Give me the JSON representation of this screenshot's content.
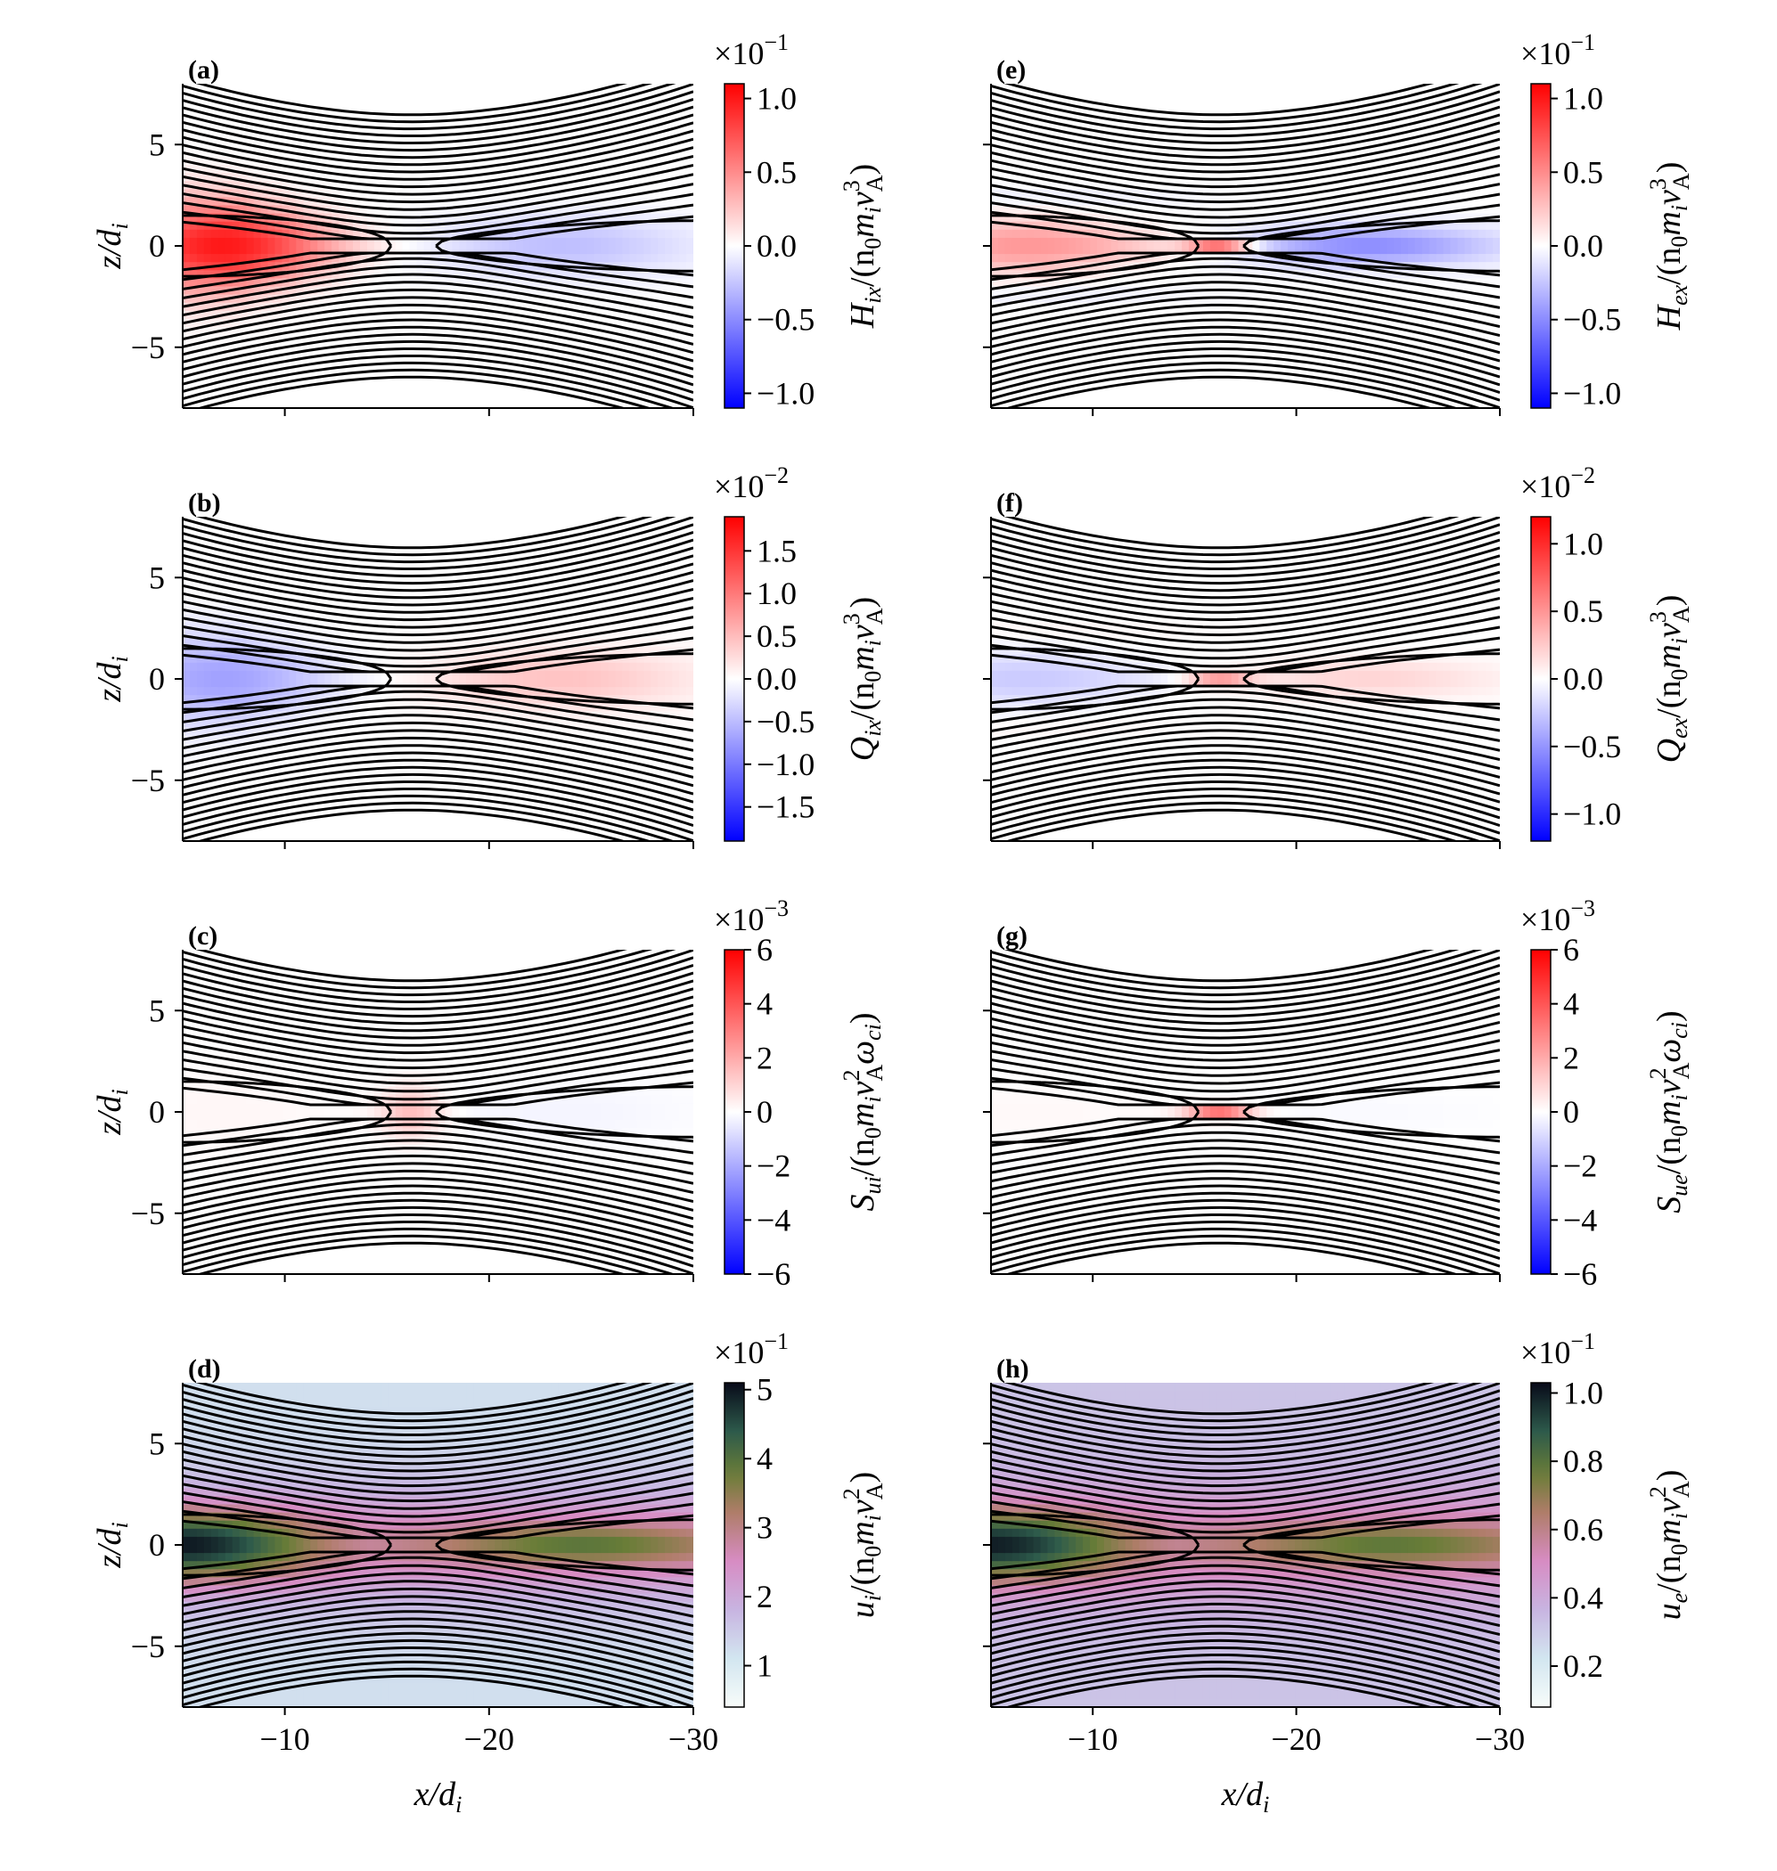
{
  "figure": {
    "shared_xlabel": "x/d",
    "shared_xlabel_sub": "i",
    "shared_ylabel": "z/d",
    "shared_ylabel_sub": "i",
    "x_ticks": [
      -10,
      -20,
      -30
    ],
    "x_tick_labels": [
      "−10",
      "−20",
      "−30"
    ],
    "y_ticks": [
      5,
      0,
      -5
    ],
    "y_tick_labels": [
      "5",
      "0",
      "−5"
    ],
    "xlim": [
      -5,
      -30
    ],
    "ylim": [
      -8,
      8
    ],
    "field_lines": {
      "count": 38,
      "color": "#000000"
    },
    "colors": {
      "red": "#ff0000",
      "blue": "#0000ff",
      "white": "#ffffff"
    }
  },
  "chart_data": [
    {
      "type": "heatmap",
      "panel": "(a)",
      "column": 0,
      "row": 0,
      "quantity": "ion enthalpy flux x",
      "label_sym": "H",
      "label_sub": "ix",
      "label_rest": "/(n",
      "label_unit": "m",
      "label_unit_sub": "i",
      "label_va": "v",
      "label_va_exp": "3",
      "label_va_sub": "A",
      "label_close": ")",
      "multiplier": "×10",
      "multiplier_exp": "−1",
      "colormap": "bwr",
      "vmin": -1.1,
      "vmax": 1.1,
      "cbar_ticks": [
        1.0,
        0.5,
        0.0,
        -0.5,
        -1.0
      ],
      "cbar_tick_labels": [
        "1.0",
        "0.5",
        "0.0",
        "−0.5",
        "−1.0"
      ],
      "features": {
        "left_blob": 1.0,
        "right_blob": -0.28,
        "xline": 0.0,
        "spread": "broad"
      }
    },
    {
      "type": "heatmap",
      "panel": "(b)",
      "column": 0,
      "row": 1,
      "quantity": "ion heat flux x",
      "label_sym": "Q",
      "label_sub": "ix",
      "label_rest": "/(n",
      "label_unit": "m",
      "label_unit_sub": "i",
      "label_va": "v",
      "label_va_exp": "3",
      "label_va_sub": "A",
      "label_close": ")",
      "multiplier": "×10",
      "multiplier_exp": "−2",
      "colormap": "bwr",
      "vmin": -1.9,
      "vmax": 1.9,
      "cbar_ticks": [
        1.5,
        1.0,
        0.5,
        0.0,
        -0.5,
        -1.0,
        -1.5
      ],
      "cbar_tick_labels": [
        "1.5",
        "1.0",
        "0.5",
        "0.0",
        "−0.5",
        "−1.0",
        "−1.5"
      ],
      "features": {
        "left_blob": -0.7,
        "right_blob": 0.45,
        "xline": 0.0,
        "spread": "broad"
      }
    },
    {
      "type": "heatmap",
      "panel": "(c)",
      "column": 0,
      "row": 2,
      "quantity": "ion energy source",
      "label_sym": "S",
      "label_sub": "ui",
      "label_rest": "/(n",
      "label_unit": "m",
      "label_unit_sub": "i",
      "label_va": "v",
      "label_va_exp": "2",
      "label_va_sub": "A",
      "label_close": "ω",
      "label_close_sub": "ci",
      "label_tail": ")",
      "multiplier": "×10",
      "multiplier_exp": "−3",
      "colormap": "bwr",
      "vmin": -6,
      "vmax": 6,
      "cbar_ticks": [
        6,
        4,
        2,
        0,
        -2,
        -4,
        -6
      ],
      "cbar_tick_labels": [
        "6",
        "4",
        "2",
        "0",
        "−2",
        "−4",
        "−6"
      ],
      "features": {
        "left_blob": 0.2,
        "right_blob": -0.25,
        "xline": 1.6,
        "spread": "broad"
      }
    },
    {
      "type": "heatmap",
      "panel": "(d)",
      "column": 0,
      "row": 3,
      "quantity": "ion internal energy",
      "label_sym": "u",
      "label_sub": "i",
      "label_rest": "/(n",
      "label_unit": "m",
      "label_unit_sub": "i",
      "label_va": "v",
      "label_va_exp": "2",
      "label_va_sub": "A",
      "label_close": ")",
      "multiplier": "×10",
      "multiplier_exp": "−1",
      "colormap": "cubehelix_r",
      "vmin": 0.4,
      "vmax": 5.1,
      "cbar_ticks": [
        5,
        4,
        3,
        2,
        1
      ],
      "cbar_tick_labels": [
        "5",
        "4",
        "3",
        "2",
        "1"
      ],
      "features": {
        "core_left": 5.0,
        "core_right": 3.6,
        "lobe_edge": 3.0,
        "background": 1.2,
        "sheet": 2.4
      }
    },
    {
      "type": "heatmap",
      "panel": "(e)",
      "column": 1,
      "row": 0,
      "quantity": "electron enthalpy flux x",
      "label_sym": "H",
      "label_sub": "ex",
      "label_rest": "/(n",
      "label_unit": "m",
      "label_unit_sub": "i",
      "label_va": "v",
      "label_va_exp": "3",
      "label_va_sub": "A",
      "label_close": ")",
      "multiplier": "×10",
      "multiplier_exp": "−1",
      "colormap": "bwr",
      "vmin": -1.1,
      "vmax": 1.1,
      "cbar_ticks": [
        1.0,
        0.5,
        0.0,
        -0.5,
        -1.0
      ],
      "cbar_tick_labels": [
        "1.0",
        "0.5",
        "0.0",
        "−0.5",
        "−1.0"
      ],
      "features": {
        "left_blob": 0.45,
        "right_blob": -0.5,
        "xline": 0.9,
        "spread": "narrow"
      }
    },
    {
      "type": "heatmap",
      "panel": "(f)",
      "column": 1,
      "row": 1,
      "quantity": "electron heat flux x",
      "label_sym": "Q",
      "label_sub": "ex",
      "label_rest": "/(n",
      "label_unit": "m",
      "label_unit_sub": "i",
      "label_va": "v",
      "label_va_exp": "3",
      "label_va_sub": "A",
      "label_close": ")",
      "multiplier": "×10",
      "multiplier_exp": "−2",
      "colormap": "bwr",
      "vmin": -1.2,
      "vmax": 1.2,
      "cbar_ticks": [
        1.0,
        0.5,
        0.0,
        -0.5,
        -1.0
      ],
      "cbar_tick_labels": [
        "1.0",
        "0.5",
        "0.0",
        "−0.5",
        "−1.0"
      ],
      "features": {
        "left_blob": -0.25,
        "right_blob": 0.2,
        "xline": 0.6,
        "spread": "narrow"
      }
    },
    {
      "type": "heatmap",
      "panel": "(g)",
      "column": 1,
      "row": 2,
      "quantity": "electron energy source",
      "label_sym": "S",
      "label_sub": "ue",
      "label_rest": "/(n",
      "label_unit": "m",
      "label_unit_sub": "i",
      "label_va": "v",
      "label_va_exp": "2",
      "label_va_sub": "A",
      "label_close": "ω",
      "label_close_sub": "ci",
      "label_tail": ")",
      "multiplier": "×10",
      "multiplier_exp": "−3",
      "colormap": "bwr",
      "vmin": -6,
      "vmax": 6,
      "cbar_ticks": [
        6,
        4,
        2,
        0,
        -2,
        -4,
        -6
      ],
      "cbar_tick_labels": [
        "6",
        "4",
        "2",
        "0",
        "−2",
        "−4",
        "−6"
      ],
      "features": {
        "left_blob": 0.15,
        "right_blob": -0.12,
        "xline": 4.5,
        "spread": "narrow"
      }
    },
    {
      "type": "heatmap",
      "panel": "(h)",
      "column": 1,
      "row": 3,
      "quantity": "electron internal energy",
      "label_sym": "u",
      "label_sub": "e",
      "label_rest": "/(n",
      "label_unit": "m",
      "label_unit_sub": "i",
      "label_va": "v",
      "label_va_exp": "2",
      "label_va_sub": "A",
      "label_close": ")",
      "multiplier": "×10",
      "multiplier_exp": "−1",
      "colormap": "cubehelix_r",
      "vmin": 0.08,
      "vmax": 1.03,
      "cbar_ticks": [
        1.0,
        0.8,
        0.6,
        0.4,
        0.2
      ],
      "cbar_tick_labels": [
        "1.0",
        "0.8",
        "0.6",
        "0.4",
        "0.2"
      ],
      "features": {
        "core_left": 1.0,
        "core_right": 0.72,
        "lobe_edge": 0.62,
        "background": 0.32,
        "sheet": 0.5
      }
    }
  ]
}
